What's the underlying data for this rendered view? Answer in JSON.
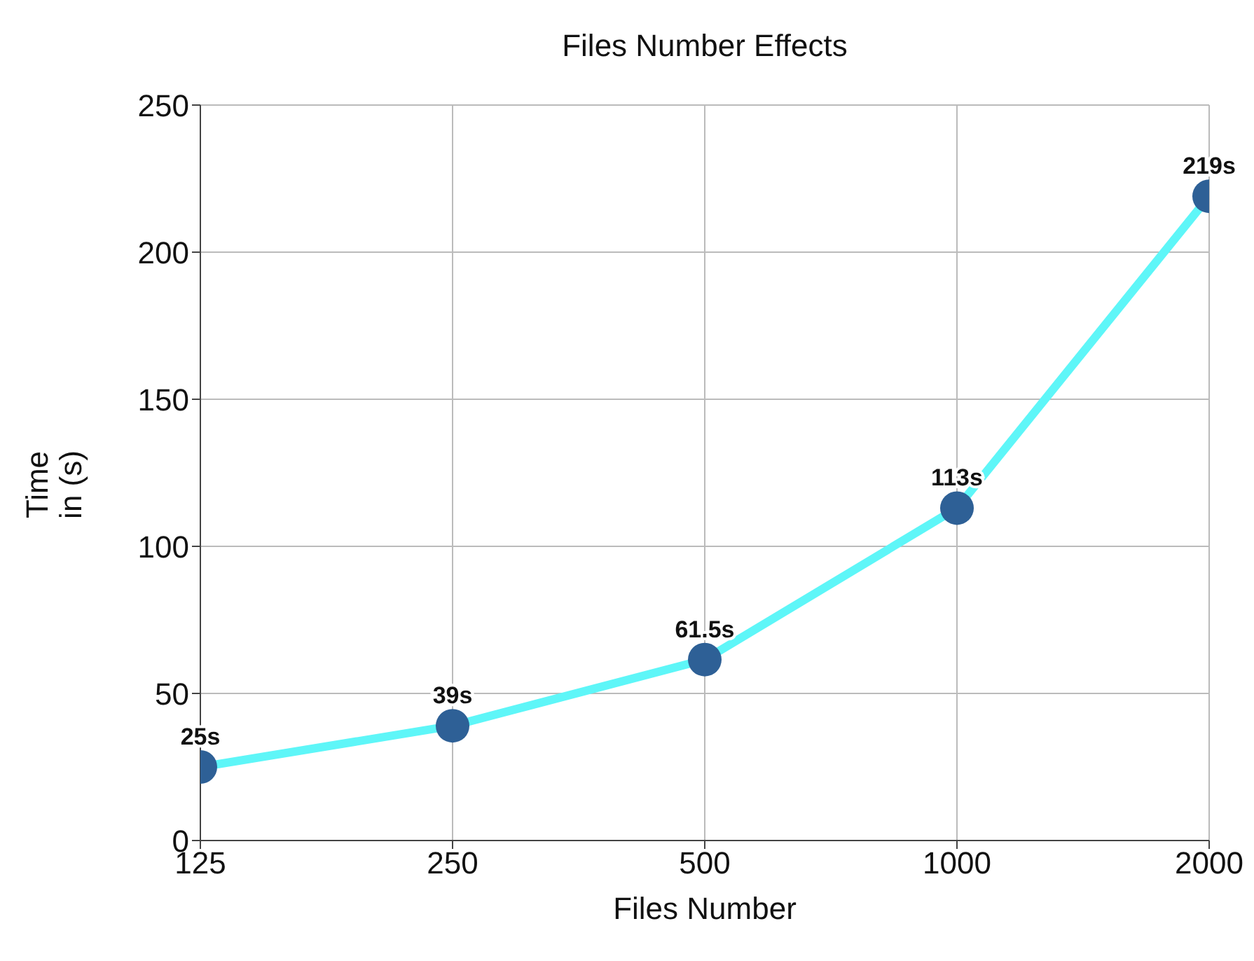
{
  "chart_data": {
    "type": "line",
    "title": "Files Number Effects",
    "xlabel": "Files Number",
    "ylabel": "Time in (s)",
    "categories": [
      "125",
      "250",
      "500",
      "1000",
      "2000"
    ],
    "series": [
      {
        "color": "#5ef6f8",
        "colors": [
          "#2e6096",
          "#2e6096",
          "#2e6096",
          "#2e6096",
          "#2e6096"
        ],
        "values": [
          25,
          39,
          61.5,
          113,
          219
        ],
        "value_labels": [
          "25s",
          "39s",
          "61.5s",
          "113s",
          "219s"
        ]
      }
    ],
    "ylim": [
      0,
      250
    ],
    "yticks": [
      0,
      50,
      100,
      150,
      200,
      250
    ],
    "grid": true,
    "legend": false,
    "marker": "circle",
    "line_style": "solid"
  }
}
